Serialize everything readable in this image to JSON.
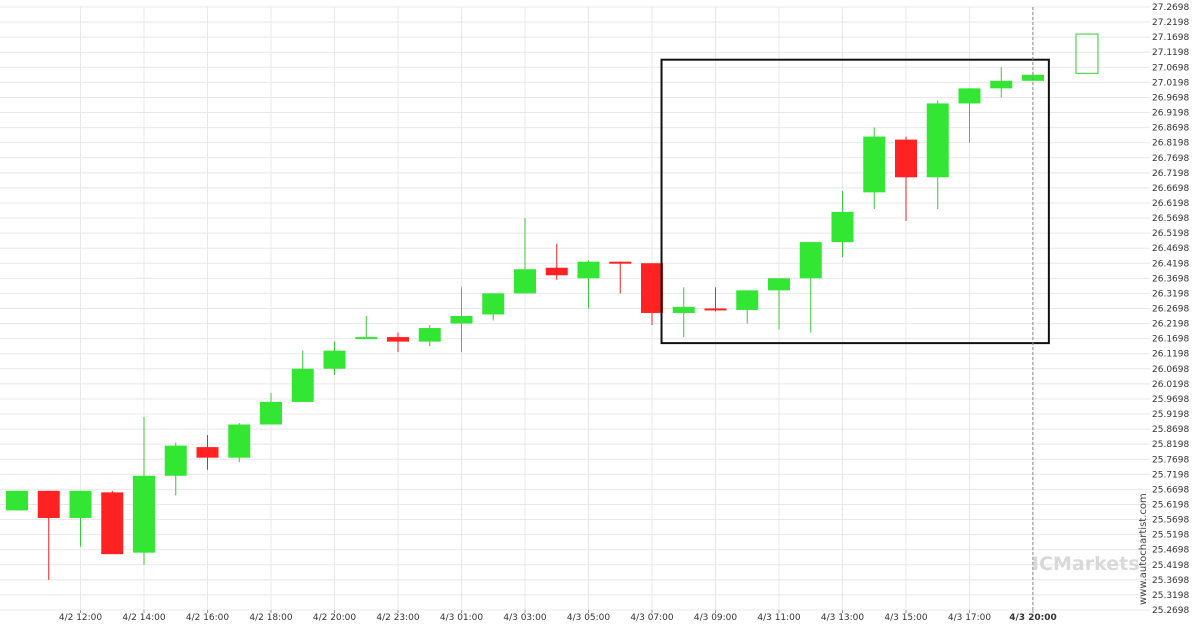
{
  "watermark": {
    "url": "www.autochartist.com",
    "brand": "ICMarkets"
  },
  "colors": {
    "up": "#33e633",
    "down": "#ff2222",
    "wick_up": "#33cc33",
    "wick_down": "#ee2222",
    "grid": "#e8e8e8",
    "box": "#111111",
    "forecast": "#33cc33"
  },
  "chart_data": {
    "type": "candlestick",
    "ylim": [
      25.2698,
      27.2698
    ],
    "y_ticks": [
      "27.2698",
      "27.2198",
      "27.1698",
      "27.1198",
      "27.0698",
      "27.0198",
      "26.9698",
      "26.9198",
      "26.8698",
      "26.8198",
      "26.7698",
      "26.7198",
      "26.6698",
      "26.6198",
      "26.5698",
      "26.5198",
      "26.4698",
      "26.4198",
      "26.3698",
      "26.3198",
      "26.2698",
      "26.2198",
      "26.1698",
      "26.1198",
      "26.0698",
      "26.0198",
      "25.9698",
      "25.9198",
      "25.8698",
      "25.8198",
      "25.7698",
      "25.7198",
      "25.6698",
      "25.6198",
      "25.5698",
      "25.5198",
      "25.4698",
      "25.4198",
      "25.3698",
      "25.3198",
      "25.2698"
    ],
    "x_ticks": [
      "4/2 12:00",
      "4/2 14:00",
      "4/2 16:00",
      "4/2 18:00",
      "4/2 20:00",
      "4/2 23:00",
      "4/3 01:00",
      "4/3 03:00",
      "4/3 05:00",
      "4/3 07:00",
      "4/3 09:00",
      "4/3 11:00",
      "4/3 13:00",
      "4/3 15:00",
      "4/3 17:00",
      "4/3 20:00"
    ],
    "x_tick_bold": "4/3 20:00",
    "candles": [
      {
        "o": 25.6,
        "h": 25.665,
        "l": 25.6,
        "c": 25.665
      },
      {
        "o": 25.665,
        "h": 25.665,
        "l": 25.37,
        "c": 25.575
      },
      {
        "o": 25.575,
        "h": 25.665,
        "l": 25.48,
        "c": 25.665
      },
      {
        "o": 25.66,
        "h": 25.665,
        "l": 25.46,
        "c": 25.455
      },
      {
        "o": 25.46,
        "h": 25.91,
        "l": 25.42,
        "c": 25.715
      },
      {
        "o": 25.715,
        "h": 25.825,
        "l": 25.65,
        "c": 25.815
      },
      {
        "o": 25.81,
        "h": 25.85,
        "l": 25.735,
        "c": 25.775
      },
      {
        "o": 25.775,
        "h": 25.89,
        "l": 25.76,
        "c": 25.885
      },
      {
        "o": 25.885,
        "h": 25.99,
        "l": 25.885,
        "c": 25.96
      },
      {
        "o": 25.96,
        "h": 26.13,
        "l": 25.96,
        "c": 26.07
      },
      {
        "o": 26.07,
        "h": 26.16,
        "l": 26.05,
        "c": 26.13
      },
      {
        "o": 26.175,
        "h": 26.245,
        "l": 26.175,
        "c": 26.175
      },
      {
        "o": 26.175,
        "h": 26.19,
        "l": 26.125,
        "c": 26.16
      },
      {
        "o": 26.16,
        "h": 26.215,
        "l": 26.145,
        "c": 26.205
      },
      {
        "o": 26.22,
        "h": 26.34,
        "l": 26.125,
        "c": 26.245
      },
      {
        "o": 26.25,
        "h": 26.315,
        "l": 26.23,
        "c": 26.32
      },
      {
        "o": 26.32,
        "h": 26.57,
        "l": 26.32,
        "c": 26.4
      },
      {
        "o": 26.405,
        "h": 26.485,
        "l": 26.365,
        "c": 26.38
      },
      {
        "o": 26.37,
        "h": 26.43,
        "l": 26.27,
        "c": 26.425
      },
      {
        "o": 26.425,
        "h": 26.425,
        "l": 26.32,
        "c": 26.42
      },
      {
        "o": 26.42,
        "h": 26.42,
        "l": 26.215,
        "c": 26.255
      },
      {
        "o": 26.255,
        "h": 26.34,
        "l": 26.175,
        "c": 26.275
      },
      {
        "o": 26.27,
        "h": 26.34,
        "l": 26.26,
        "c": 26.265
      },
      {
        "o": 26.265,
        "h": 26.33,
        "l": 26.22,
        "c": 26.33
      },
      {
        "o": 26.33,
        "h": 26.37,
        "l": 26.2,
        "c": 26.37
      },
      {
        "o": 26.37,
        "h": 26.49,
        "l": 26.19,
        "c": 26.49
      },
      {
        "o": 26.49,
        "h": 26.66,
        "l": 26.44,
        "c": 26.59
      },
      {
        "o": 26.655,
        "h": 26.87,
        "l": 26.6,
        "c": 26.84
      },
      {
        "o": 26.83,
        "h": 26.84,
        "l": 26.56,
        "c": 26.705
      },
      {
        "o": 26.705,
        "h": 26.96,
        "l": 26.6,
        "c": 26.95
      },
      {
        "o": 26.95,
        "h": 27.0,
        "l": 26.82,
        "c": 27.0
      },
      {
        "o": 27.0,
        "h": 27.07,
        "l": 26.97,
        "c": 27.025
      },
      {
        "o": 27.025,
        "h": 27.055,
        "l": 27.025,
        "c": 27.045
      }
    ],
    "pattern_box": {
      "x_start": 20.3,
      "x_end": 32.5,
      "y_low": 26.155,
      "y_high": 27.095
    },
    "forecast": {
      "x": 33.7,
      "y_low": 27.05,
      "y_high": 27.18
    },
    "current_line_x": 32.5
  }
}
